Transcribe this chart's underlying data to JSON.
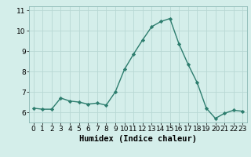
{
  "x": [
    0,
    1,
    2,
    3,
    4,
    5,
    6,
    7,
    8,
    9,
    10,
    11,
    12,
    13,
    14,
    15,
    16,
    17,
    18,
    19,
    20,
    21,
    22,
    23
  ],
  "y": [
    6.2,
    6.15,
    6.15,
    6.7,
    6.55,
    6.5,
    6.4,
    6.45,
    6.35,
    7.0,
    8.1,
    8.85,
    9.55,
    10.2,
    10.45,
    10.6,
    9.35,
    8.35,
    7.45,
    6.2,
    5.7,
    5.95,
    6.1,
    6.05
  ],
  "line_color": "#2d7d6e",
  "marker": "D",
  "marker_size": 2.2,
  "bg_color": "#d4eeea",
  "grid_color": "#b8d8d4",
  "xlabel": "Humidex (Indice chaleur)",
  "xlim": [
    -0.5,
    23.5
  ],
  "ylim": [
    5.5,
    11.2
  ],
  "yticks": [
    6,
    7,
    8,
    9,
    10,
    11
  ],
  "xticks": [
    0,
    1,
    2,
    3,
    4,
    5,
    6,
    7,
    8,
    9,
    10,
    11,
    12,
    13,
    14,
    15,
    16,
    17,
    18,
    19,
    20,
    21,
    22,
    23
  ],
  "xlabel_fontsize": 7.5,
  "tick_fontsize": 6.5
}
